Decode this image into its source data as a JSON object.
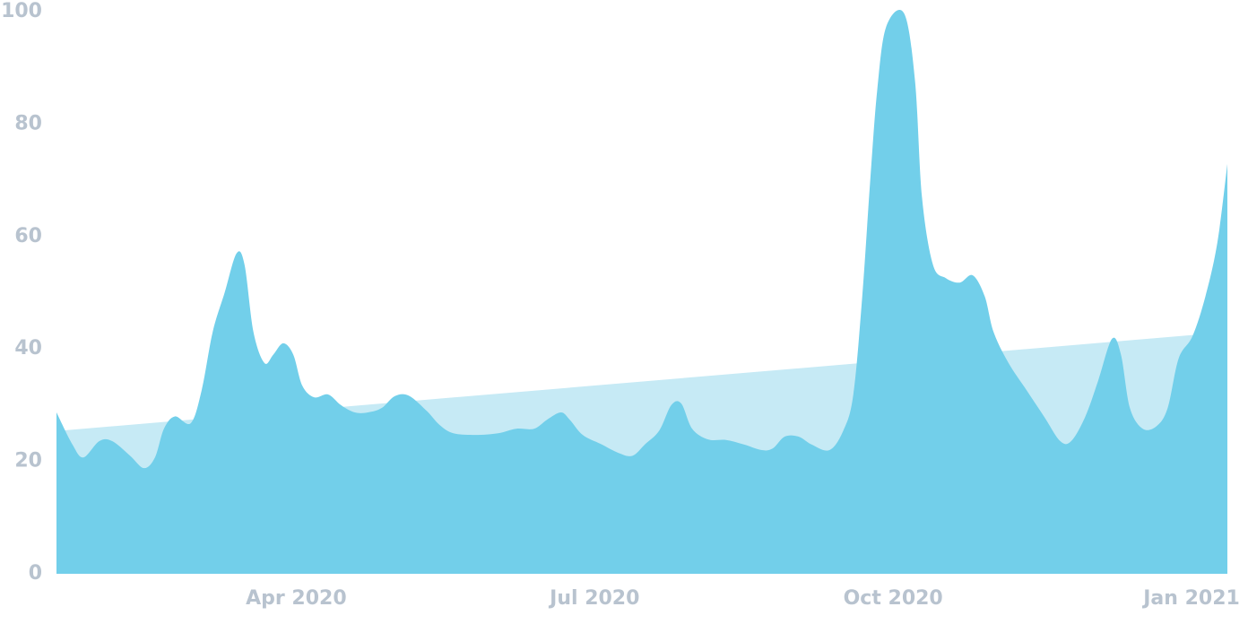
{
  "chart_data": {
    "type": "area",
    "color": "#72cfea",
    "x": [
      0.59,
      0.75,
      0.86,
      1.02,
      1.15,
      1.33,
      1.47,
      1.58,
      1.67,
      1.78,
      1.94,
      2.05,
      2.16,
      2.28,
      2.4,
      2.48,
      2.57,
      2.68,
      2.77,
      2.87,
      2.97,
      3.06,
      3.18,
      3.32,
      3.45,
      3.59,
      3.72,
      3.86,
      3.99,
      4.13,
      4.31,
      4.44,
      4.58,
      4.8,
      5.03,
      5.21,
      5.39,
      5.52,
      5.66,
      5.75,
      5.88,
      6.06,
      6.24,
      6.38,
      6.51,
      6.65,
      6.77,
      6.87,
      6.98,
      7.14,
      7.32,
      7.5,
      7.68,
      7.79,
      7.91,
      8.05,
      8.18,
      8.36,
      8.5,
      8.6,
      8.69,
      8.77,
      8.84,
      8.93,
      9.11,
      9.22,
      9.29,
      9.4,
      9.53,
      9.67,
      9.8,
      9.92,
      10.01,
      10.16,
      10.34,
      10.52,
      10.68,
      10.79,
      10.93,
      11.06,
      11.2,
      11.29,
      11.38,
      11.51,
      11.65,
      11.76,
      11.87,
      12.01,
      12.14,
      12.26,
      12.36
    ],
    "values": [
      28.7,
      23,
      20.7,
      23.6,
      23.6,
      21,
      18.8,
      20.7,
      25.8,
      28,
      26.8,
      32.7,
      43,
      50,
      57,
      55,
      43,
      37.5,
      39,
      41,
      39,
      33.5,
      31.4,
      31.9,
      30,
      28.7,
      28.7,
      29.5,
      31.6,
      31.7,
      29,
      26.5,
      25,
      24.7,
      25,
      25.8,
      25.8,
      27.4,
      28.7,
      27.4,
      24.7,
      23.1,
      21.5,
      21,
      23.1,
      25.5,
      30,
      30.3,
      25.8,
      23.9,
      23.8,
      23,
      22,
      22.3,
      24.4,
      24.4,
      23,
      22,
      25.5,
      31.9,
      49.4,
      70,
      86,
      97.3,
      99.7,
      87.7,
      67,
      55,
      52.6,
      51.8,
      53.1,
      49.4,
      43,
      37.5,
      32.7,
      27.9,
      23.6,
      23.6,
      27.9,
      34.3,
      41.8,
      39,
      29.5,
      25.8,
      26.3,
      29.5,
      38.3,
      42.3,
      49.4,
      59,
      72.9
    ],
    "trend": {
      "color": "#c6eaf5",
      "x": [
        0.59,
        12.36
      ],
      "values": [
        25.4,
        43.0
      ]
    },
    "xlim": [
      0.59,
      12.36
    ],
    "xticks": [
      {
        "value": 3,
        "label": "Apr 2020"
      },
      {
        "value": 6,
        "label": "Jul 2020"
      },
      {
        "value": 9,
        "label": "Oct 2020"
      },
      {
        "value": 12,
        "label": "Jan 2021"
      }
    ],
    "ylim": [
      0,
      100
    ],
    "yticks": [
      0,
      20,
      40,
      60,
      80,
      100
    ]
  }
}
